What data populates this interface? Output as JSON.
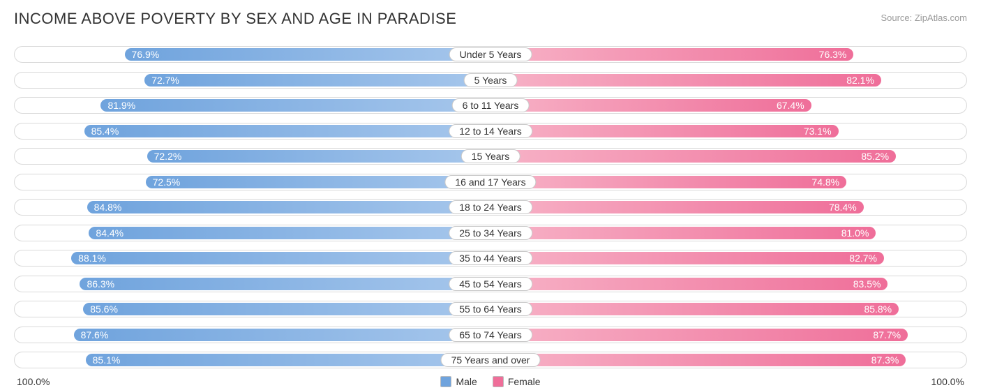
{
  "header": {
    "title": "INCOME ABOVE POVERTY BY SEX AND AGE IN PARADISE",
    "source": "Source: ZipAtlas.com"
  },
  "chart": {
    "type": "diverging-bar",
    "axis_max": 100.0,
    "axis_left_label": "100.0%",
    "axis_right_label": "100.0%",
    "male_gradient_from": "#a7c7ec",
    "male_gradient_to": "#6fa3dd",
    "female_gradient_from": "#f7b3c7",
    "female_gradient_to": "#ef6e99",
    "track_border": "#d9d9d9",
    "background": "#ffffff",
    "bar_label_color": "#ffffff",
    "bar_label_fontsize": 14,
    "cat_label_fontsize": 14,
    "title_fontsize": 22,
    "rows": [
      {
        "category": "Under 5 Years",
        "male": 76.9,
        "female": 76.3,
        "male_label": "76.9%",
        "female_label": "76.3%"
      },
      {
        "category": "5 Years",
        "male": 72.7,
        "female": 82.1,
        "male_label": "72.7%",
        "female_label": "82.1%"
      },
      {
        "category": "6 to 11 Years",
        "male": 81.9,
        "female": 67.4,
        "male_label": "81.9%",
        "female_label": "67.4%"
      },
      {
        "category": "12 to 14 Years",
        "male": 85.4,
        "female": 73.1,
        "male_label": "85.4%",
        "female_label": "73.1%"
      },
      {
        "category": "15 Years",
        "male": 72.2,
        "female": 85.2,
        "male_label": "72.2%",
        "female_label": "85.2%"
      },
      {
        "category": "16 and 17 Years",
        "male": 72.5,
        "female": 74.8,
        "male_label": "72.5%",
        "female_label": "74.8%"
      },
      {
        "category": "18 to 24 Years",
        "male": 84.8,
        "female": 78.4,
        "male_label": "84.8%",
        "female_label": "78.4%"
      },
      {
        "category": "25 to 34 Years",
        "male": 84.4,
        "female": 81.0,
        "male_label": "84.4%",
        "female_label": "81.0%"
      },
      {
        "category": "35 to 44 Years",
        "male": 88.1,
        "female": 82.7,
        "male_label": "88.1%",
        "female_label": "82.7%"
      },
      {
        "category": "45 to 54 Years",
        "male": 86.3,
        "female": 83.5,
        "male_label": "86.3%",
        "female_label": "83.5%"
      },
      {
        "category": "55 to 64 Years",
        "male": 85.6,
        "female": 85.8,
        "male_label": "85.6%",
        "female_label": "85.8%"
      },
      {
        "category": "65 to 74 Years",
        "male": 87.6,
        "female": 87.7,
        "male_label": "87.6%",
        "female_label": "87.7%"
      },
      {
        "category": "75 Years and over",
        "male": 85.1,
        "female": 87.3,
        "male_label": "85.1%",
        "female_label": "87.3%"
      }
    ]
  },
  "legend": {
    "male_label": "Male",
    "female_label": "Female",
    "male_swatch": "#6fa3dd",
    "female_swatch": "#ef6e99"
  }
}
